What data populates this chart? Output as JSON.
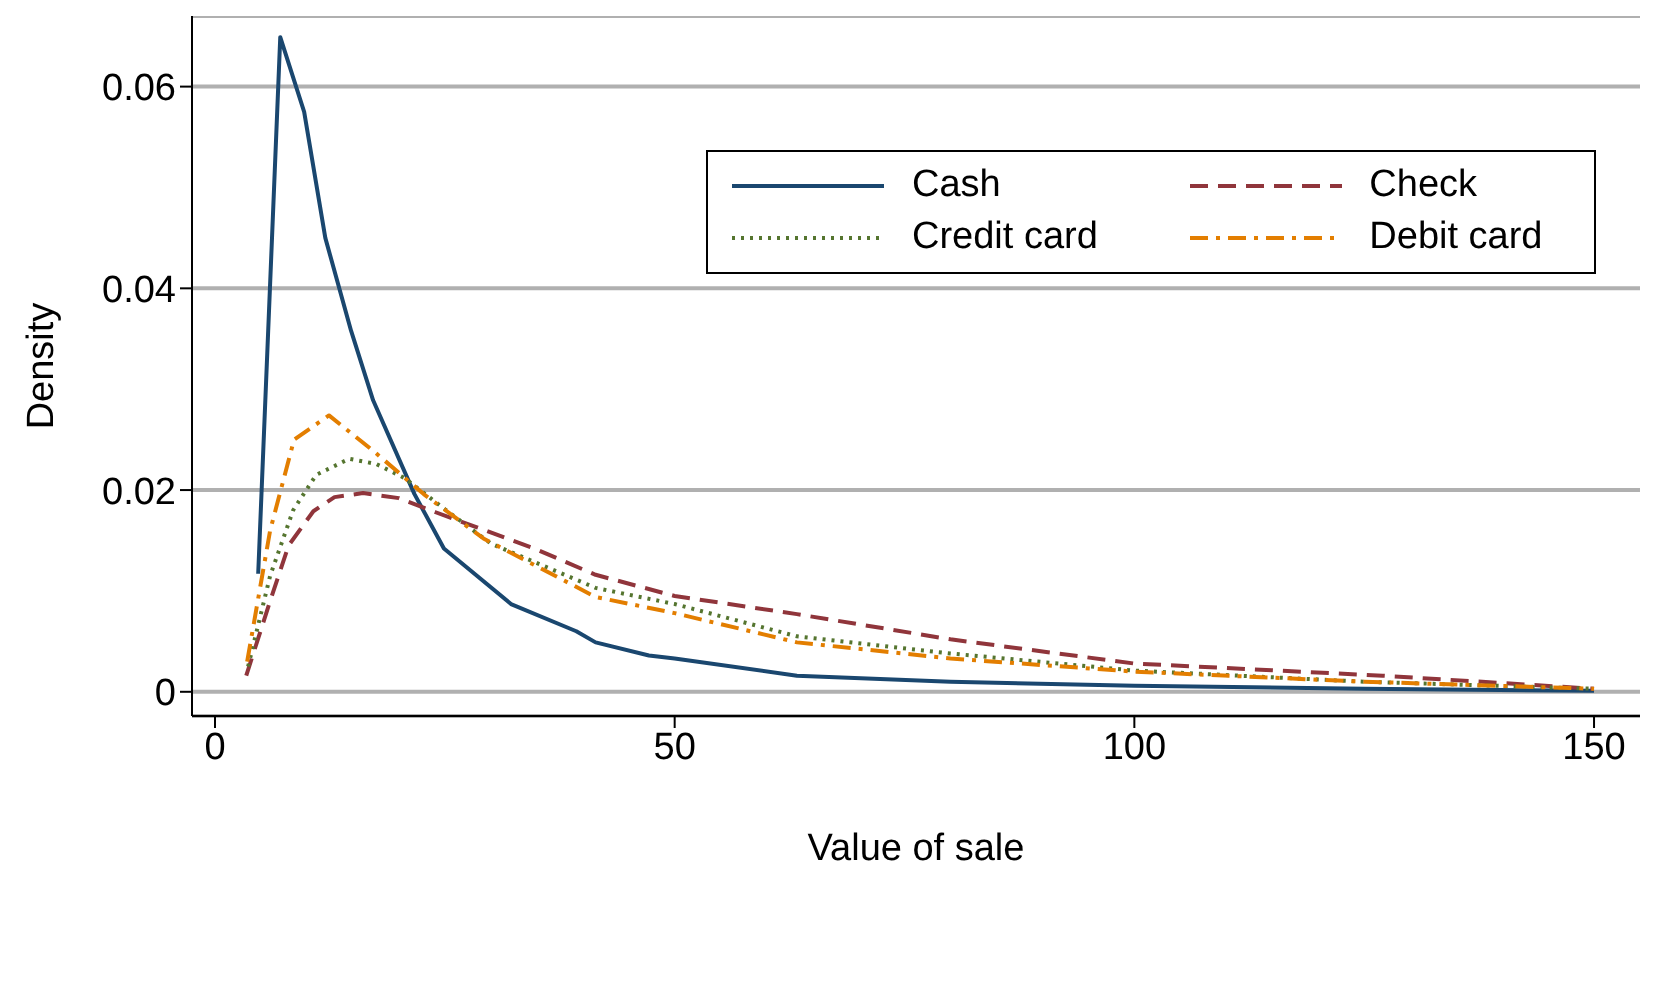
{
  "chart_data": {
    "type": "line",
    "xlabel": "Value of sale",
    "ylabel": "Density",
    "xlim": [
      -2.5,
      155
    ],
    "ylim": [
      -0.0024,
      0.067
    ],
    "xticks": [
      0,
      50,
      100,
      150
    ],
    "yticks": [
      0,
      0.02,
      0.04,
      0.06
    ],
    "grid": "y",
    "legend": "top right",
    "series": [
      {
        "name": "Cash",
        "color": "#1a476f",
        "line_style": "solid",
        "x": [
          4.7,
          7.1,
          9.7,
          12,
          14.8,
          17.2,
          21.7,
          24.9,
          32.2,
          39.3,
          41.4,
          47.2,
          50,
          63.3,
          80,
          100,
          125,
          150
        ],
        "values": [
          0.0117,
          0.0649,
          0.0575,
          0.045,
          0.0358,
          0.0289,
          0.0196,
          0.0142,
          0.0087,
          0.006,
          0.0049,
          0.0036,
          0.0033,
          0.0016,
          0.001,
          0.0006,
          0.0003,
          0.0001
        ]
      },
      {
        "name": "Check",
        "color": "#90353b",
        "line_style": "dashed",
        "x": [
          3.4,
          6,
          8,
          10.7,
          13,
          16.1,
          20,
          24,
          28.5,
          35,
          41.4,
          50,
          63.3,
          80,
          100,
          127,
          150
        ],
        "values": [
          0.0016,
          0.009,
          0.0145,
          0.0179,
          0.0193,
          0.0197,
          0.0192,
          0.0178,
          0.0163,
          0.0141,
          0.0116,
          0.0095,
          0.0077,
          0.0052,
          0.0028,
          0.0016,
          0.0003
        ]
      },
      {
        "name": "Credit card",
        "color": "#55752f",
        "line_style": "dotted",
        "x": [
          3.6,
          6,
          8.5,
          11,
          14.6,
          17.5,
          20.6,
          25,
          30,
          41.4,
          50,
          63.3,
          80,
          100,
          125,
          150
        ],
        "values": [
          0.0025,
          0.0115,
          0.018,
          0.0215,
          0.0231,
          0.0226,
          0.0212,
          0.0181,
          0.0147,
          0.0103,
          0.0087,
          0.0055,
          0.0038,
          0.0021,
          0.001,
          0.0003
        ]
      },
      {
        "name": "Debit card",
        "color": "#e37e00",
        "line_style": "dashdot",
        "x": [
          3.5,
          6,
          8.6,
          12.4,
          17.2,
          22.7,
          29.2,
          41.4,
          50,
          63.3,
          80,
          100,
          125,
          150
        ],
        "values": [
          0.003,
          0.016,
          0.025,
          0.0274,
          0.0239,
          0.0196,
          0.0152,
          0.0094,
          0.0078,
          0.0049,
          0.0033,
          0.002,
          0.001,
          0.0003
        ]
      }
    ]
  }
}
